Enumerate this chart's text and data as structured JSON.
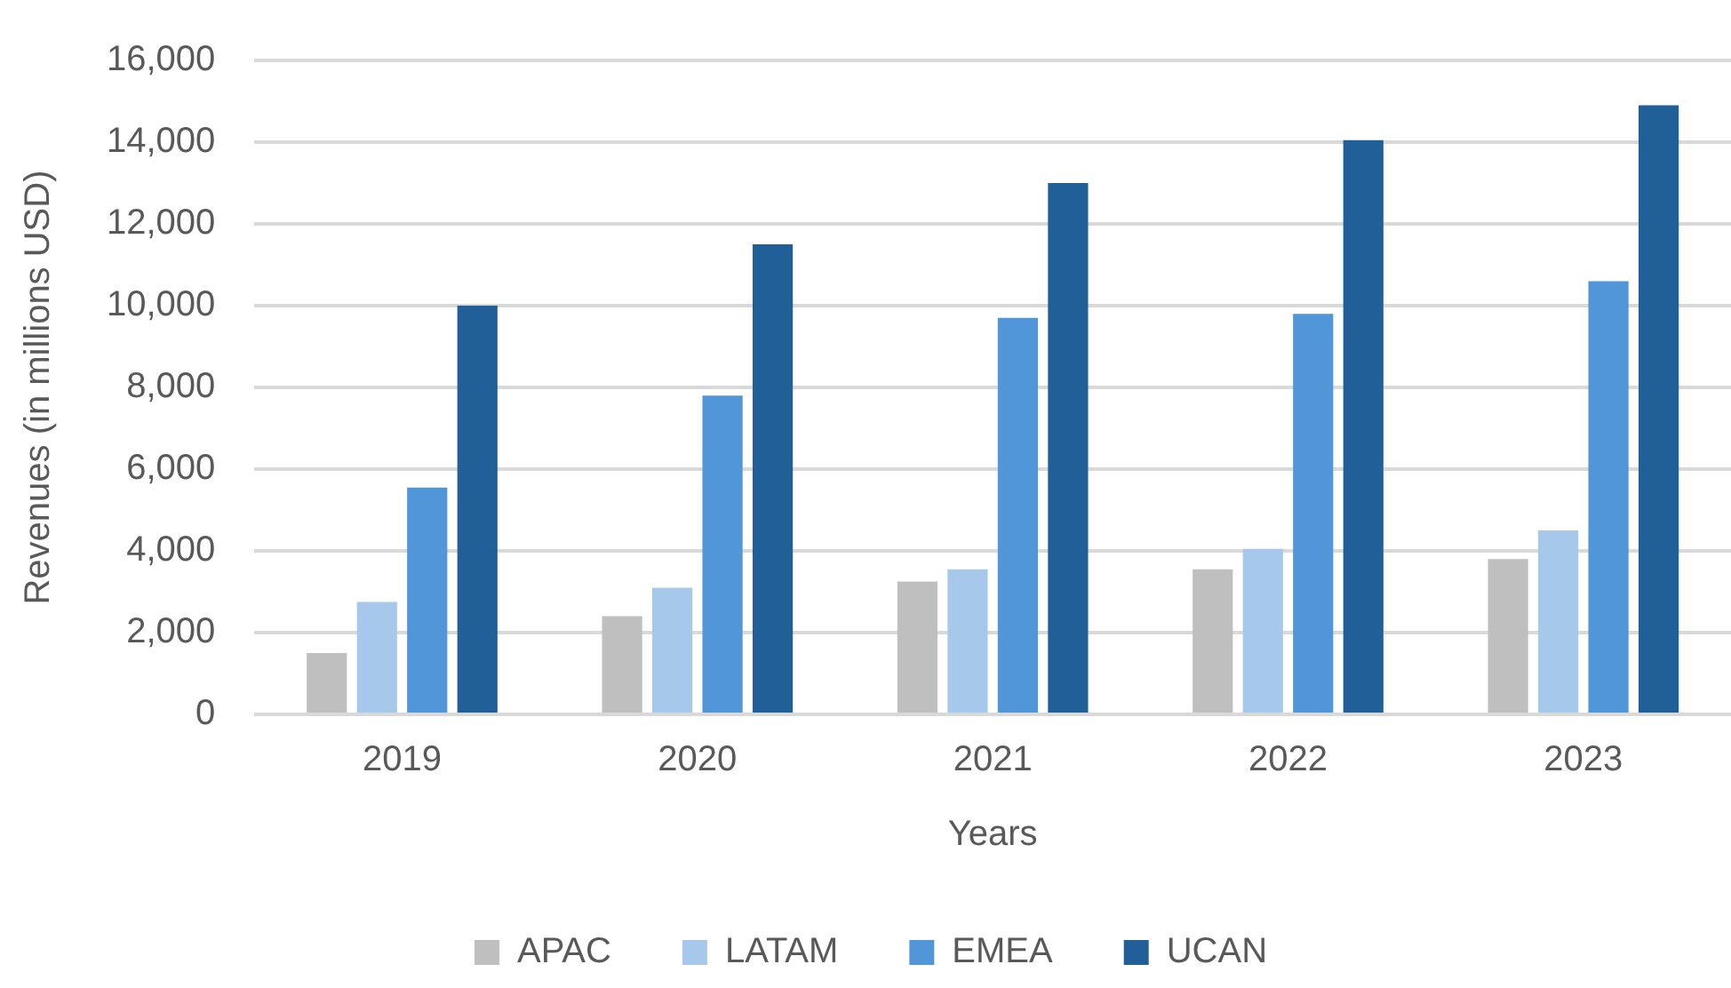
{
  "chart_data": {
    "type": "bar",
    "xlabel": "Years",
    "ylabel": "Revenues (in millions USD)",
    "categories": [
      "2019",
      "2020",
      "2021",
      "2022",
      "2023"
    ],
    "series": [
      {
        "name": "APAC",
        "color": "#bfbfbf",
        "values": [
          1500,
          2400,
          3250,
          3550,
          3800
        ]
      },
      {
        "name": "LATAM",
        "color": "#a6c9eb",
        "values": [
          2750,
          3100,
          3550,
          4050,
          4500
        ]
      },
      {
        "name": "EMEA",
        "color": "#5096d9",
        "values": [
          5550,
          7800,
          9700,
          9800,
          10600
        ]
      },
      {
        "name": "UCAN",
        "color": "#215f99",
        "values": [
          10000,
          11500,
          13000,
          14050,
          14900
        ]
      }
    ],
    "ylim": [
      0,
      16000
    ],
    "yticks": [
      0,
      {
        "value": 2000,
        "label": "2,000"
      },
      {
        "value": 4000,
        "label": "4,000"
      },
      {
        "value": 6000,
        "label": "6,000"
      },
      {
        "value": 8000,
        "label": "8,000"
      },
      {
        "value": 10000,
        "label": "10,000"
      },
      {
        "value": 12000,
        "label": "12,000"
      },
      {
        "value": 14000,
        "label": "14,000"
      },
      {
        "value": 16000,
        "label": "16,000"
      }
    ],
    "grid": "y",
    "legend": "bottom"
  }
}
